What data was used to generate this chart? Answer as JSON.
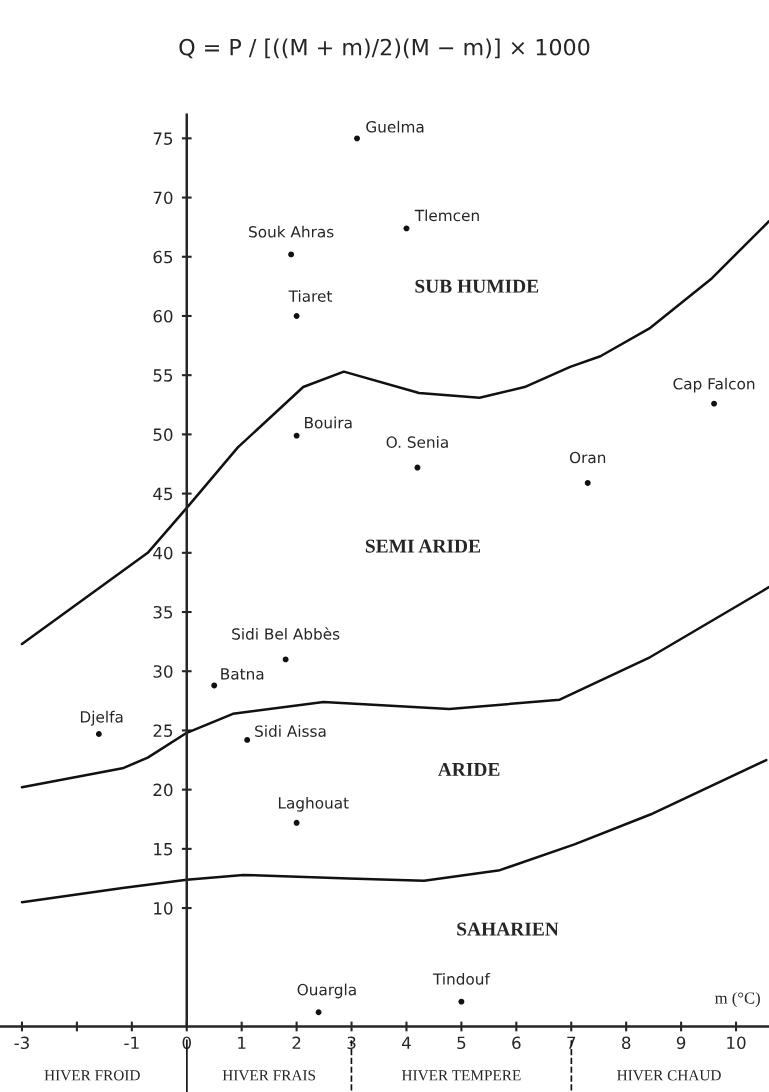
{
  "chart_data": {
    "type": "scatter",
    "title": "Q = P / [((M + m)/2)(M − m)] × 1000",
    "xlabel": "m (°C)",
    "xlim": [
      -3.4,
      10.6
    ],
    "ylim": [
      0,
      77
    ],
    "xticks": [
      -3,
      {
        "value": -2,
        "label": null
      },
      -1,
      0,
      1,
      2,
      3,
      4,
      5,
      6,
      7,
      8,
      9,
      10
    ],
    "yticks": [
      10,
      15,
      20,
      25,
      30,
      35,
      40,
      45,
      50,
      55,
      60,
      65,
      70,
      75
    ],
    "grid": false,
    "series": [
      {
        "marker": "circle",
        "color": "#111111",
        "x": [
          3.1,
          4.0,
          1.9,
          2.0,
          9.6,
          2.0,
          4.2,
          7.3,
          1.8,
          0.5,
          1.1,
          -1.6,
          2.0,
          2.4,
          5.0
        ],
        "values": [
          75,
          67.4,
          65.2,
          60,
          52.6,
          49.9,
          47.2,
          45.9,
          31,
          28.8,
          24.2,
          24.7,
          17.2,
          1.2,
          2.1
        ]
      },
      {
        "type": "line",
        "color": "#111111",
        "line_style": "solid",
        "x": [
          -3.0,
          -0.71,
          0,
          0.93,
          2.12,
          2.86,
          4.23,
          5.33,
          6.15,
          6.98,
          7.53,
          8.44,
          9.54,
          10.6
        ],
        "values": [
          32.3,
          40,
          43.8,
          48.9,
          54,
          55.3,
          53.5,
          53.1,
          54,
          55.7,
          56.6,
          59,
          63.1,
          68
        ]
      },
      {
        "type": "line",
        "color": "#111111",
        "line_style": "solid",
        "x": [
          -3.0,
          -1.17,
          -0.71,
          0,
          0.84,
          2.49,
          4.78,
          6.79,
          8.44,
          10.6
        ],
        "values": [
          20.2,
          21.8,
          22.7,
          24.8,
          26.4,
          27.4,
          26.8,
          27.6,
          31.2,
          37.1
        ]
      },
      {
        "type": "line",
        "color": "#111111",
        "line_style": "solid",
        "x": [
          -3.0,
          -1.17,
          0,
          1.03,
          2.95,
          4.32,
          5.7,
          7.07,
          8.44,
          10.55
        ],
        "values": [
          10.5,
          11.7,
          12.4,
          12.8,
          12.5,
          12.3,
          13.2,
          15.4,
          17.9,
          22.5
        ]
      }
    ],
    "annotations": [
      {
        "text": "Guelma",
        "x": 3.1,
        "y": 75
      },
      {
        "text": "Tlemcen",
        "x": 4.0,
        "y": 67.4
      },
      {
        "text": "Souk Ahras",
        "x": 1.9,
        "y": 65.2
      },
      {
        "text": "Tiaret",
        "x": 2.0,
        "y": 60
      },
      {
        "text": "Cap Falcon",
        "x": 9.6,
        "y": 52.6
      },
      {
        "text": "Bouira",
        "x": 2.0,
        "y": 49.9
      },
      {
        "text": "O. Senia",
        "x": 4.2,
        "y": 47.2
      },
      {
        "text": "Oran",
        "x": 7.3,
        "y": 45.9
      },
      {
        "text": "Sidi Bel Abbès",
        "x": 1.8,
        "y": 31
      },
      {
        "text": "Batna",
        "x": 0.5,
        "y": 28.8
      },
      {
        "text": "Sidi Aissa",
        "x": 1.1,
        "y": 24.2
      },
      {
        "text": "Djelfa",
        "x": -1.6,
        "y": 24.7
      },
      {
        "text": "Laghouat",
        "x": 2.0,
        "y": 17.2
      },
      {
        "text": "Ouargla",
        "x": 2.4,
        "y": 1.2
      },
      {
        "text": "Tindouf",
        "x": 5.0,
        "y": 2.1
      },
      "SUB HUMIDE",
      "SEMI ARIDE",
      "ARIDE",
      "SAHARIEN",
      "HIVER FROID",
      "HIVER FRAIS",
      "HIVER TEMPERE",
      "HIVER CHAUD"
    ]
  }
}
